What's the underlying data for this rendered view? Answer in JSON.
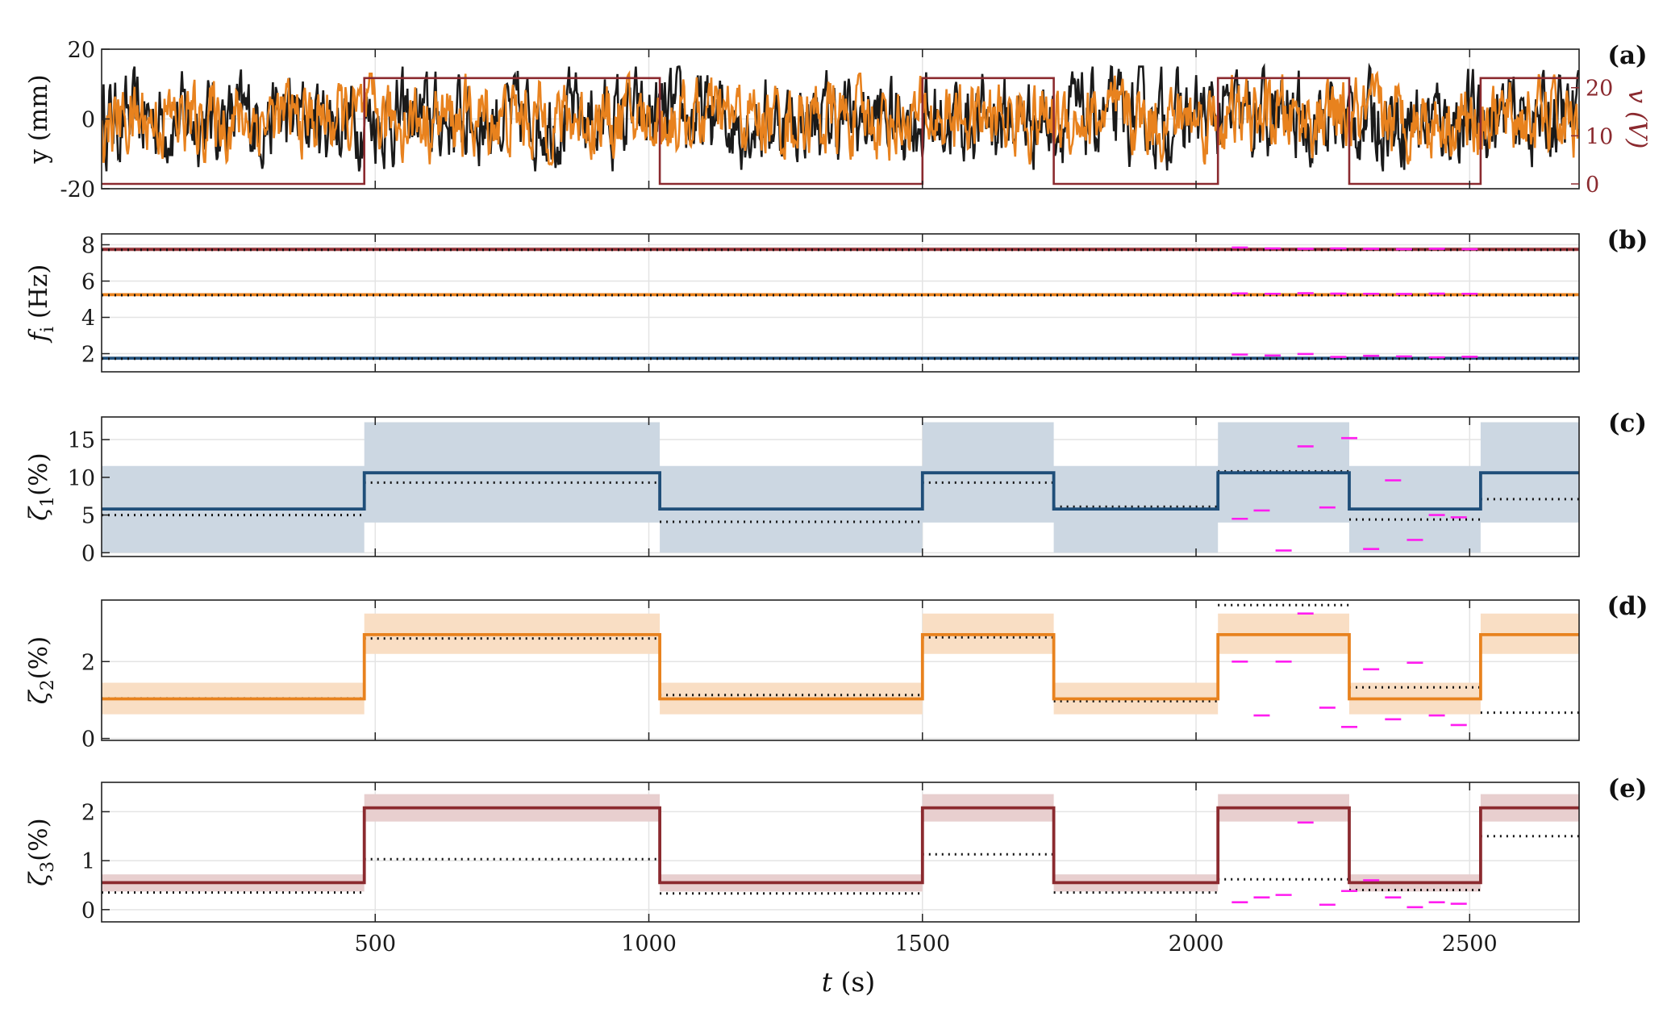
{
  "chart_data": [
    {
      "id": "a",
      "type": "line",
      "panel_label": "(a)",
      "ylabel": "y (mm)",
      "ylabel_right": "v (V)",
      "xlim": [
        0,
        2700
      ],
      "ylim": [
        -20,
        20
      ],
      "ylim_right": [
        -1,
        28
      ],
      "yticks": [
        -20,
        0,
        20
      ],
      "yticks_right": [
        0,
        10,
        20
      ],
      "grid": true,
      "series": [
        {
          "kind": "random_signal",
          "color": "#1a1a1a",
          "amplitude_mm": 15
        },
        {
          "kind": "random_signal",
          "color": "#e8821e",
          "amplitude_mm": 13
        },
        {
          "kind": "step",
          "axis": "right",
          "color": "#8b2a2f",
          "x": [
            0,
            480,
            480,
            1020,
            1020,
            1500,
            1500,
            1740,
            1740,
            2040,
            2040,
            2280,
            2280,
            2520,
            2520,
            2700
          ],
          "y": [
            0,
            0,
            22,
            22,
            0,
            0,
            22,
            22,
            0,
            0,
            22,
            22,
            0,
            0,
            22,
            22
          ]
        }
      ]
    },
    {
      "id": "b",
      "type": "line",
      "panel_label": "(b)",
      "ylabel": "f_i (Hz)",
      "ylabel_main": "f",
      "ylabel_sub": "i",
      "ylabel_unit": " (Hz)",
      "xlim": [
        0,
        2700
      ],
      "ylim": [
        1.0,
        8.6
      ],
      "yticks": [
        2,
        4,
        6,
        8
      ],
      "grid": true,
      "series": [
        {
          "color": "#8b2a2f",
          "band": "#e6c9c9",
          "value": 7.75,
          "band_half": 0.12,
          "dotted_value": 7.72
        },
        {
          "color": "#e8821e",
          "band": "#f9dcc0",
          "value": 5.25,
          "band_half": 0.1,
          "dotted_value": 5.22
        },
        {
          "color": "#1f4e79",
          "band": "#cdd7e3",
          "value": 1.75,
          "band_half": 0.1,
          "dotted_value": 1.72
        }
      ],
      "magenta_x": [
        2080,
        2140,
        2200,
        2260,
        2320,
        2380,
        2440,
        2500
      ],
      "magenta_y": [
        [
          7.85,
          7.8,
          7.78,
          7.8,
          7.78,
          7.76,
          7.78,
          7.76
        ],
        [
          5.32,
          5.3,
          5.33,
          5.31,
          5.3,
          5.29,
          5.31,
          5.3
        ],
        [
          1.95,
          1.9,
          1.98,
          1.82,
          1.88,
          1.85,
          1.8,
          1.83
        ]
      ]
    },
    {
      "id": "c",
      "type": "line",
      "panel_label": "(c)",
      "ylabel": "ζ1(%)",
      "ylabel_main": "ζ",
      "ylabel_sub": "1",
      "ylabel_unit": "(%)",
      "xlim": [
        0,
        2700
      ],
      "ylim": [
        -0.5,
        18
      ],
      "yticks": [
        0,
        5,
        10,
        15
      ],
      "grid": true,
      "color": "#1f4e79",
      "band_color": "#ccd7e2",
      "x": [
        0,
        480,
        480,
        1020,
        1020,
        1500,
        1500,
        1740,
        1740,
        2040,
        2040,
        2280,
        2280,
        2520,
        2520,
        2700
      ],
      "y": [
        5.8,
        5.8,
        10.6,
        10.6,
        5.8,
        5.8,
        10.6,
        10.6,
        5.8,
        5.8,
        10.6,
        10.6,
        5.8,
        5.8,
        10.6,
        10.6
      ],
      "band_lo": [
        0,
        0,
        4,
        4,
        0,
        0,
        4,
        4,
        0,
        0,
        4,
        4,
        0,
        0,
        4,
        4
      ],
      "band_hi": [
        11.5,
        11.5,
        17.3,
        17.3,
        11.5,
        11.5,
        17.3,
        17.3,
        11.5,
        11.5,
        17.3,
        17.3,
        11.5,
        11.5,
        17.3,
        17.3
      ],
      "dotted_x": [
        0,
        480,
        480,
        1020,
        1020,
        1500,
        1500,
        1740,
        1740,
        2040,
        2040,
        2280,
        2280,
        2520,
        2520,
        2700
      ],
      "dotted_y": [
        5.0,
        5.0,
        9.3,
        9.3,
        4.1,
        4.1,
        9.3,
        9.3,
        6.1,
        6.1,
        10.8,
        10.8,
        4.4,
        4.4,
        7.1,
        7.1
      ],
      "magenta_x": [
        2080,
        2120,
        2160,
        2200,
        2240,
        2280,
        2320,
        2360,
        2400,
        2440,
        2480
      ],
      "magenta_y": [
        4.5,
        5.6,
        0.3,
        14.1,
        6.0,
        15.2,
        0.5,
        9.6,
        1.7,
        5.0,
        4.7
      ]
    },
    {
      "id": "d",
      "type": "line",
      "panel_label": "(d)",
      "ylabel": "ζ2(%)",
      "ylabel_main": "ζ",
      "ylabel_sub": "2",
      "ylabel_unit": "(%)",
      "xlim": [
        0,
        2700
      ],
      "ylim": [
        -0.05,
        3.6
      ],
      "yticks": [
        0,
        2
      ],
      "grid": true,
      "color": "#e8821e",
      "band_color": "#f9dec4",
      "x": [
        0,
        480,
        480,
        1020,
        1020,
        1500,
        1500,
        1740,
        1740,
        2040,
        2040,
        2280,
        2280,
        2520,
        2520,
        2700
      ],
      "y": [
        1.03,
        1.03,
        2.7,
        2.7,
        1.03,
        1.03,
        2.7,
        2.7,
        1.03,
        1.03,
        2.7,
        2.7,
        1.03,
        1.03,
        2.7,
        2.7
      ],
      "band_lo": [
        0.63,
        0.63,
        2.2,
        2.2,
        0.63,
        0.63,
        2.2,
        2.2,
        0.63,
        0.63,
        2.2,
        2.2,
        0.63,
        0.63,
        2.2,
        2.2
      ],
      "band_hi": [
        1.45,
        1.45,
        3.25,
        3.25,
        1.45,
        1.45,
        3.25,
        3.25,
        1.45,
        1.45,
        3.25,
        3.25,
        1.45,
        1.45,
        3.25,
        3.25
      ],
      "dotted_x": [
        0,
        480,
        480,
        1020,
        1020,
        1500,
        1500,
        1740,
        1740,
        2040,
        2040,
        2280,
        2280,
        2520,
        2520,
        2700
      ],
      "dotted_y": [
        1.04,
        1.04,
        2.6,
        2.6,
        1.13,
        1.13,
        2.63,
        2.63,
        0.97,
        0.97,
        3.47,
        3.47,
        1.33,
        1.33,
        0.67,
        0.67
      ],
      "magenta_x": [
        2080,
        2120,
        2160,
        2200,
        2240,
        2280,
        2320,
        2360,
        2400,
        2440,
        2480
      ],
      "magenta_y": [
        2.0,
        0.6,
        2.0,
        3.25,
        0.8,
        0.3,
        1.8,
        0.5,
        1.97,
        0.6,
        0.35
      ]
    },
    {
      "id": "e",
      "type": "line",
      "panel_label": "(e)",
      "ylabel": "ζ3(%)",
      "ylabel_main": "ζ",
      "ylabel_sub": "3",
      "ylabel_unit": "(%)",
      "xlabel": "t (s)",
      "xlabel_main": "t",
      "xlabel_unit": " (s)",
      "xlim": [
        0,
        2700
      ],
      "ylim": [
        -0.25,
        2.6
      ],
      "yticks": [
        0,
        1,
        2
      ],
      "xticks": [
        500,
        1000,
        1500,
        2000,
        2500
      ],
      "grid": true,
      "color": "#8b2a2f",
      "band_color": "#e8cfcf",
      "x": [
        0,
        480,
        480,
        1020,
        1020,
        1500,
        1500,
        1740,
        1740,
        2040,
        2040,
        2280,
        2280,
        2520,
        2520,
        2700
      ],
      "y": [
        0.55,
        0.55,
        2.08,
        2.08,
        0.55,
        0.55,
        2.08,
        2.08,
        0.55,
        0.55,
        2.08,
        2.08,
        0.55,
        0.55,
        2.08,
        2.08
      ],
      "band_lo": [
        0.37,
        0.37,
        1.8,
        1.8,
        0.37,
        0.37,
        1.8,
        1.8,
        0.37,
        0.37,
        1.8,
        1.8,
        0.37,
        0.37,
        1.8,
        1.8
      ],
      "band_hi": [
        0.72,
        0.72,
        2.36,
        2.36,
        0.72,
        0.72,
        2.36,
        2.36,
        0.72,
        0.72,
        2.36,
        2.36,
        0.72,
        0.72,
        2.36,
        2.36
      ],
      "dotted_x": [
        0,
        480,
        480,
        1020,
        1020,
        1500,
        1500,
        1740,
        1740,
        2040,
        2040,
        2280,
        2280,
        2520,
        2520,
        2700
      ],
      "dotted_y": [
        0.35,
        0.35,
        1.03,
        1.03,
        0.33,
        0.33,
        1.13,
        1.13,
        0.35,
        0.35,
        0.62,
        0.62,
        0.4,
        0.4,
        1.5,
        1.5
      ],
      "magenta_x": [
        2080,
        2120,
        2160,
        2200,
        2240,
        2280,
        2320,
        2360,
        2400,
        2440,
        2480
      ],
      "magenta_y": [
        0.15,
        0.25,
        0.3,
        1.78,
        0.1,
        0.38,
        0.6,
        0.25,
        0.05,
        0.15,
        0.12
      ]
    }
  ]
}
